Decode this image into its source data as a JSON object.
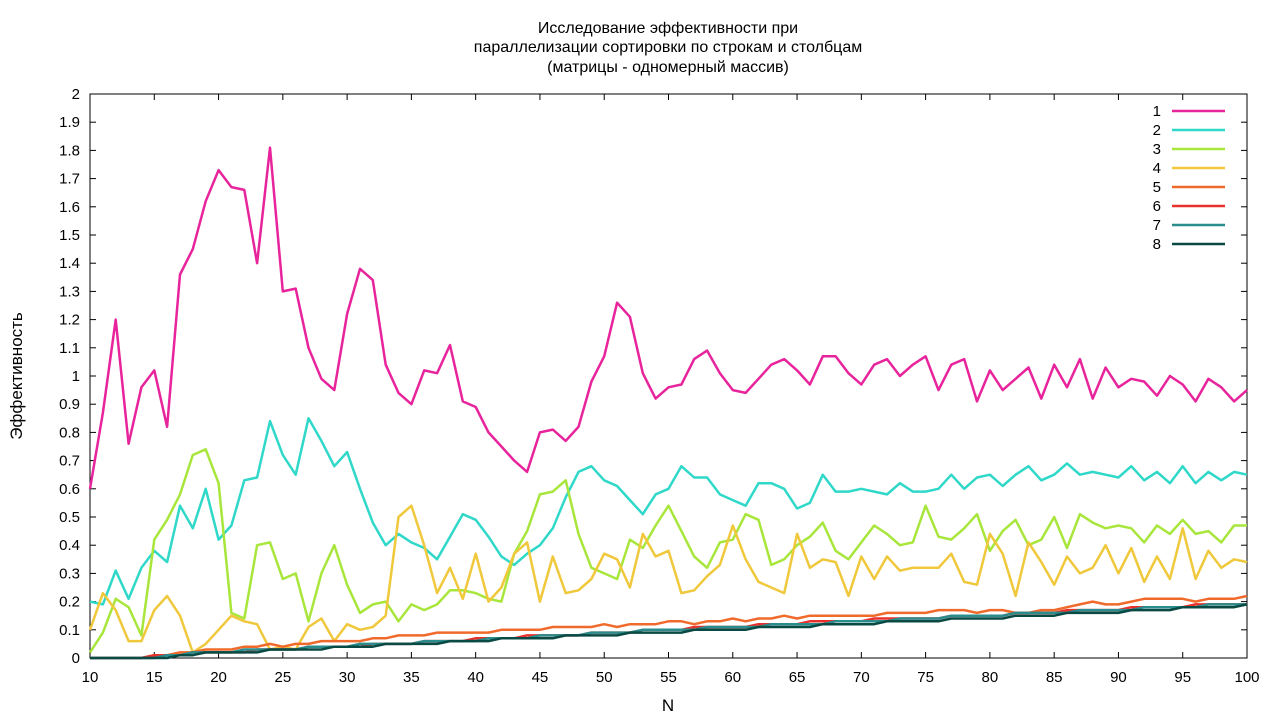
{
  "chart_data": {
    "type": "line",
    "title": [
      "Исследование эффективности при",
      "параллелизации сортировки по строкам и столбцам",
      "(матрицы - одномерный массив)"
    ],
    "xlabel": "N",
    "ylabel": "Эффективность",
    "xlim": [
      10,
      100
    ],
    "ylim": [
      0,
      2
    ],
    "xticks": [
      10,
      15,
      20,
      25,
      30,
      35,
      40,
      45,
      50,
      55,
      60,
      65,
      70,
      75,
      80,
      85,
      90,
      95,
      100
    ],
    "yticks": [
      "0",
      "0.1",
      "0.2",
      "0.3",
      "0.4",
      "0.5",
      "0.6",
      "0.7",
      "0.8",
      "0.9",
      "1",
      "1.1",
      "1.2",
      "1.3",
      "1.4",
      "1.5",
      "1.6",
      "1.7",
      "1.8",
      "1.9",
      "2"
    ],
    "grid": false,
    "legend_position": "top-right",
    "x": [
      10,
      11,
      12,
      13,
      14,
      15,
      16,
      17,
      18,
      19,
      20,
      21,
      22,
      23,
      24,
      25,
      26,
      27,
      28,
      29,
      30,
      31,
      32,
      33,
      34,
      35,
      36,
      37,
      38,
      39,
      40,
      41,
      42,
      43,
      44,
      45,
      46,
      47,
      48,
      49,
      50,
      51,
      52,
      53,
      54,
      55,
      56,
      57,
      58,
      59,
      60,
      61,
      62,
      63,
      64,
      65,
      66,
      67,
      68,
      69,
      70,
      71,
      72,
      73,
      74,
      75,
      76,
      77,
      78,
      79,
      80,
      81,
      82,
      83,
      84,
      85,
      86,
      87,
      88,
      89,
      90,
      91,
      92,
      93,
      94,
      95,
      96,
      97,
      98,
      99,
      100
    ],
    "series": [
      {
        "name": "1",
        "color": "#e8249c",
        "values": [
          0.6,
          0.87,
          1.2,
          0.76,
          0.96,
          1.02,
          0.82,
          1.36,
          1.45,
          1.62,
          1.73,
          1.67,
          1.66,
          1.4,
          1.81,
          1.3,
          1.31,
          1.1,
          0.99,
          0.95,
          1.22,
          1.38,
          1.34,
          1.04,
          0.94,
          0.9,
          1.02,
          1.01,
          1.11,
          0.91,
          0.89,
          0.8,
          0.75,
          0.7,
          0.66,
          0.8,
          0.81,
          0.77,
          0.82,
          0.98,
          1.07,
          1.26,
          1.21,
          1.01,
          0.92,
          0.96,
          0.97,
          1.06,
          1.09,
          1.01,
          0.95,
          0.94,
          0.99,
          1.04,
          1.06,
          1.02,
          0.97,
          1.07,
          1.07,
          1.01,
          0.97,
          1.04,
          1.06,
          1.0,
          1.04,
          1.07,
          0.95,
          1.04,
          1.06,
          0.91,
          1.02,
          0.95,
          0.99,
          1.03,
          0.92,
          1.04,
          0.96,
          1.06,
          0.92,
          1.03,
          0.96,
          0.99,
          0.98,
          0.93,
          1.0,
          0.97,
          0.91,
          0.99,
          0.96,
          0.91,
          0.95
        ]
      },
      {
        "name": "2",
        "color": "#2fd8c8",
        "values": [
          0.2,
          0.19,
          0.31,
          0.21,
          0.32,
          0.38,
          0.34,
          0.54,
          0.46,
          0.6,
          0.42,
          0.47,
          0.63,
          0.64,
          0.84,
          0.72,
          0.65,
          0.85,
          0.77,
          0.68,
          0.73,
          0.6,
          0.48,
          0.4,
          0.44,
          0.41,
          0.39,
          0.35,
          0.43,
          0.51,
          0.49,
          0.43,
          0.36,
          0.33,
          0.37,
          0.4,
          0.46,
          0.57,
          0.66,
          0.68,
          0.63,
          0.61,
          0.56,
          0.51,
          0.58,
          0.6,
          0.68,
          0.64,
          0.64,
          0.58,
          0.56,
          0.54,
          0.62,
          0.62,
          0.6,
          0.53,
          0.55,
          0.65,
          0.59,
          0.59,
          0.6,
          0.59,
          0.58,
          0.62,
          0.59,
          0.59,
          0.6,
          0.65,
          0.6,
          0.64,
          0.65,
          0.61,
          0.65,
          0.68,
          0.63,
          0.65,
          0.69,
          0.65,
          0.66,
          0.65,
          0.64,
          0.68,
          0.63,
          0.66,
          0.62,
          0.68,
          0.62,
          0.66,
          0.63,
          0.66,
          0.65
        ]
      },
      {
        "name": "3",
        "color": "#a8e63c",
        "values": [
          0.02,
          0.09,
          0.21,
          0.18,
          0.08,
          0.42,
          0.49,
          0.58,
          0.72,
          0.74,
          0.62,
          0.16,
          0.14,
          0.4,
          0.41,
          0.28,
          0.3,
          0.13,
          0.3,
          0.4,
          0.26,
          0.16,
          0.19,
          0.2,
          0.13,
          0.19,
          0.17,
          0.19,
          0.24,
          0.24,
          0.23,
          0.21,
          0.2,
          0.37,
          0.45,
          0.58,
          0.59,
          0.63,
          0.44,
          0.32,
          0.3,
          0.28,
          0.42,
          0.39,
          0.47,
          0.54,
          0.45,
          0.36,
          0.32,
          0.41,
          0.42,
          0.51,
          0.49,
          0.33,
          0.35,
          0.4,
          0.43,
          0.48,
          0.38,
          0.35,
          0.41,
          0.47,
          0.44,
          0.4,
          0.41,
          0.54,
          0.43,
          0.42,
          0.46,
          0.51,
          0.38,
          0.45,
          0.49,
          0.4,
          0.42,
          0.5,
          0.39,
          0.51,
          0.48,
          0.46,
          0.47,
          0.46,
          0.41,
          0.47,
          0.44,
          0.49,
          0.44,
          0.45,
          0.41,
          0.47,
          0.47
        ]
      },
      {
        "name": "4",
        "color": "#f0c83c",
        "values": [
          0.1,
          0.23,
          0.17,
          0.06,
          0.06,
          0.17,
          0.22,
          0.15,
          0.02,
          0.05,
          0.1,
          0.15,
          0.13,
          0.12,
          0.03,
          0.04,
          0.03,
          0.11,
          0.14,
          0.06,
          0.12,
          0.1,
          0.11,
          0.15,
          0.5,
          0.54,
          0.4,
          0.23,
          0.32,
          0.21,
          0.37,
          0.2,
          0.25,
          0.37,
          0.41,
          0.2,
          0.36,
          0.23,
          0.24,
          0.28,
          0.37,
          0.35,
          0.25,
          0.44,
          0.36,
          0.38,
          0.23,
          0.24,
          0.29,
          0.33,
          0.47,
          0.35,
          0.27,
          0.25,
          0.23,
          0.44,
          0.32,
          0.35,
          0.34,
          0.22,
          0.36,
          0.28,
          0.36,
          0.31,
          0.32,
          0.32,
          0.32,
          0.37,
          0.27,
          0.26,
          0.44,
          0.37,
          0.22,
          0.41,
          0.34,
          0.26,
          0.36,
          0.3,
          0.32,
          0.4,
          0.3,
          0.39,
          0.27,
          0.36,
          0.28,
          0.46,
          0.28,
          0.38,
          0.32,
          0.35,
          0.34
        ]
      },
      {
        "name": "5",
        "color": "#f06a2c",
        "values": [
          0.0,
          0.0,
          0.0,
          0.0,
          0.0,
          0.01,
          0.01,
          0.02,
          0.02,
          0.03,
          0.03,
          0.03,
          0.04,
          0.04,
          0.05,
          0.04,
          0.05,
          0.05,
          0.06,
          0.06,
          0.06,
          0.06,
          0.07,
          0.07,
          0.08,
          0.08,
          0.08,
          0.09,
          0.09,
          0.09,
          0.09,
          0.09,
          0.1,
          0.1,
          0.1,
          0.1,
          0.11,
          0.11,
          0.11,
          0.11,
          0.12,
          0.11,
          0.12,
          0.12,
          0.12,
          0.13,
          0.13,
          0.12,
          0.13,
          0.13,
          0.14,
          0.13,
          0.14,
          0.14,
          0.15,
          0.14,
          0.15,
          0.15,
          0.15,
          0.15,
          0.15,
          0.15,
          0.16,
          0.16,
          0.16,
          0.16,
          0.17,
          0.17,
          0.17,
          0.16,
          0.17,
          0.17,
          0.16,
          0.16,
          0.17,
          0.17,
          0.18,
          0.19,
          0.2,
          0.19,
          0.19,
          0.2,
          0.21,
          0.21,
          0.21,
          0.21,
          0.2,
          0.21,
          0.21,
          0.21,
          0.22
        ]
      },
      {
        "name": "6",
        "color": "#e8302c",
        "values": [
          0.0,
          0.0,
          0.0,
          0.0,
          0.0,
          0.01,
          0.01,
          0.01,
          0.02,
          0.02,
          0.02,
          0.02,
          0.02,
          0.03,
          0.03,
          0.03,
          0.03,
          0.04,
          0.04,
          0.04,
          0.04,
          0.04,
          0.05,
          0.05,
          0.05,
          0.05,
          0.06,
          0.06,
          0.06,
          0.06,
          0.07,
          0.07,
          0.07,
          0.07,
          0.08,
          0.08,
          0.08,
          0.08,
          0.08,
          0.09,
          0.09,
          0.09,
          0.09,
          0.1,
          0.1,
          0.1,
          0.1,
          0.11,
          0.11,
          0.11,
          0.11,
          0.11,
          0.12,
          0.12,
          0.12,
          0.12,
          0.13,
          0.13,
          0.13,
          0.13,
          0.13,
          0.14,
          0.14,
          0.14,
          0.14,
          0.14,
          0.14,
          0.15,
          0.15,
          0.15,
          0.15,
          0.15,
          0.16,
          0.16,
          0.16,
          0.16,
          0.17,
          0.17,
          0.17,
          0.17,
          0.17,
          0.18,
          0.18,
          0.18,
          0.18,
          0.18,
          0.19,
          0.19,
          0.19,
          0.19,
          0.19
        ]
      },
      {
        "name": "7",
        "color": "#2a8c8c",
        "values": [
          0.0,
          0.0,
          0.0,
          0.0,
          0.0,
          0.0,
          0.01,
          0.01,
          0.02,
          0.02,
          0.02,
          0.02,
          0.03,
          0.03,
          0.03,
          0.03,
          0.03,
          0.04,
          0.04,
          0.04,
          0.04,
          0.05,
          0.05,
          0.05,
          0.05,
          0.05,
          0.06,
          0.06,
          0.06,
          0.06,
          0.06,
          0.07,
          0.07,
          0.07,
          0.07,
          0.08,
          0.08,
          0.08,
          0.08,
          0.09,
          0.09,
          0.09,
          0.09,
          0.1,
          0.1,
          0.1,
          0.1,
          0.1,
          0.11,
          0.11,
          0.11,
          0.11,
          0.11,
          0.12,
          0.12,
          0.12,
          0.12,
          0.12,
          0.13,
          0.13,
          0.13,
          0.13,
          0.13,
          0.14,
          0.14,
          0.14,
          0.14,
          0.15,
          0.15,
          0.15,
          0.15,
          0.15,
          0.16,
          0.16,
          0.16,
          0.16,
          0.16,
          0.17,
          0.17,
          0.17,
          0.17,
          0.17,
          0.18,
          0.18,
          0.18,
          0.18,
          0.18,
          0.19,
          0.19,
          0.19,
          0.19
        ]
      },
      {
        "name": "8",
        "color": "#0a4a44",
        "values": [
          0.0,
          0.0,
          0.0,
          0.0,
          0.0,
          0.0,
          0.0,
          0.01,
          0.01,
          0.02,
          0.02,
          0.02,
          0.02,
          0.02,
          0.03,
          0.03,
          0.03,
          0.03,
          0.03,
          0.04,
          0.04,
          0.04,
          0.04,
          0.05,
          0.05,
          0.05,
          0.05,
          0.05,
          0.06,
          0.06,
          0.06,
          0.06,
          0.07,
          0.07,
          0.07,
          0.07,
          0.07,
          0.08,
          0.08,
          0.08,
          0.08,
          0.08,
          0.09,
          0.09,
          0.09,
          0.09,
          0.09,
          0.1,
          0.1,
          0.1,
          0.1,
          0.1,
          0.11,
          0.11,
          0.11,
          0.11,
          0.11,
          0.12,
          0.12,
          0.12,
          0.12,
          0.12,
          0.13,
          0.13,
          0.13,
          0.13,
          0.13,
          0.14,
          0.14,
          0.14,
          0.14,
          0.14,
          0.15,
          0.15,
          0.15,
          0.15,
          0.16,
          0.16,
          0.16,
          0.16,
          0.16,
          0.17,
          0.17,
          0.17,
          0.17,
          0.18,
          0.18,
          0.18,
          0.18,
          0.18,
          0.19
        ]
      }
    ]
  }
}
